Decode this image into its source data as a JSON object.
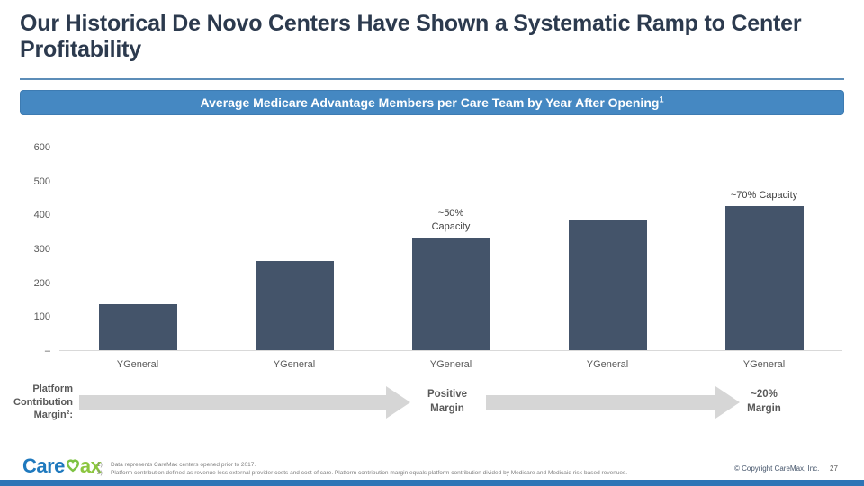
{
  "slide": {
    "title": "Our Historical De Novo Centers Have Shown a Systematic Ramp to Center Profitability",
    "banner": {
      "text": "Average Medicare Advantage Members per Care Team by Year After Opening",
      "superscript": "1"
    }
  },
  "chart_data": {
    "type": "bar",
    "title": "Average Medicare Advantage Members per Care Team by Year After Opening",
    "categories": [
      "YGeneral",
      "YGeneral",
      "YGeneral",
      "YGeneral",
      "YGeneral"
    ],
    "values": [
      135,
      265,
      333,
      385,
      427
    ],
    "ylim": [
      0,
      600
    ],
    "ytick_labels": [
      "600",
      "500",
      "400",
      "300",
      "200",
      "100",
      "–"
    ],
    "bar_color": "#44546a",
    "grid": false,
    "legend": false,
    "annotations": [
      {
        "bar_index": 2,
        "lines": [
          "~50%",
          "Capacity"
        ]
      },
      {
        "bar_index": 4,
        "lines": [
          "~70% Capacity"
        ]
      }
    ]
  },
  "margin_track": {
    "label_lines": [
      "Platform",
      "Contribution",
      "Margin²:"
    ],
    "positive_lines": [
      "Positive",
      "Margin"
    ],
    "twenty_lines": [
      "~20%",
      "Margin"
    ]
  },
  "footer": {
    "logo_care": "Care",
    "logo_ax": "ax",
    "footnotes": [
      {
        "num": "1)",
        "text": "Data represents CareMax centers opened prior to 2017."
      },
      {
        "num": "2)",
        "text": "Platform contribution defined as revenue less external provider costs and cost of care. Platform contribution margin equals platform contribution divided by Medicare and Medicaid risk-based revenues."
      }
    ],
    "copyright": "© Copyright CareMax, Inc.",
    "page_number": "27"
  },
  "colors": {
    "accent_blue": "#4588c2",
    "bar_blue": "#44546a",
    "strip_blue": "#2e75b6",
    "title_navy": "#2c3a4e",
    "arrow_gray": "#d6d6d6",
    "logo_blue": "#1f79be",
    "logo_green": "#8cc63f"
  }
}
